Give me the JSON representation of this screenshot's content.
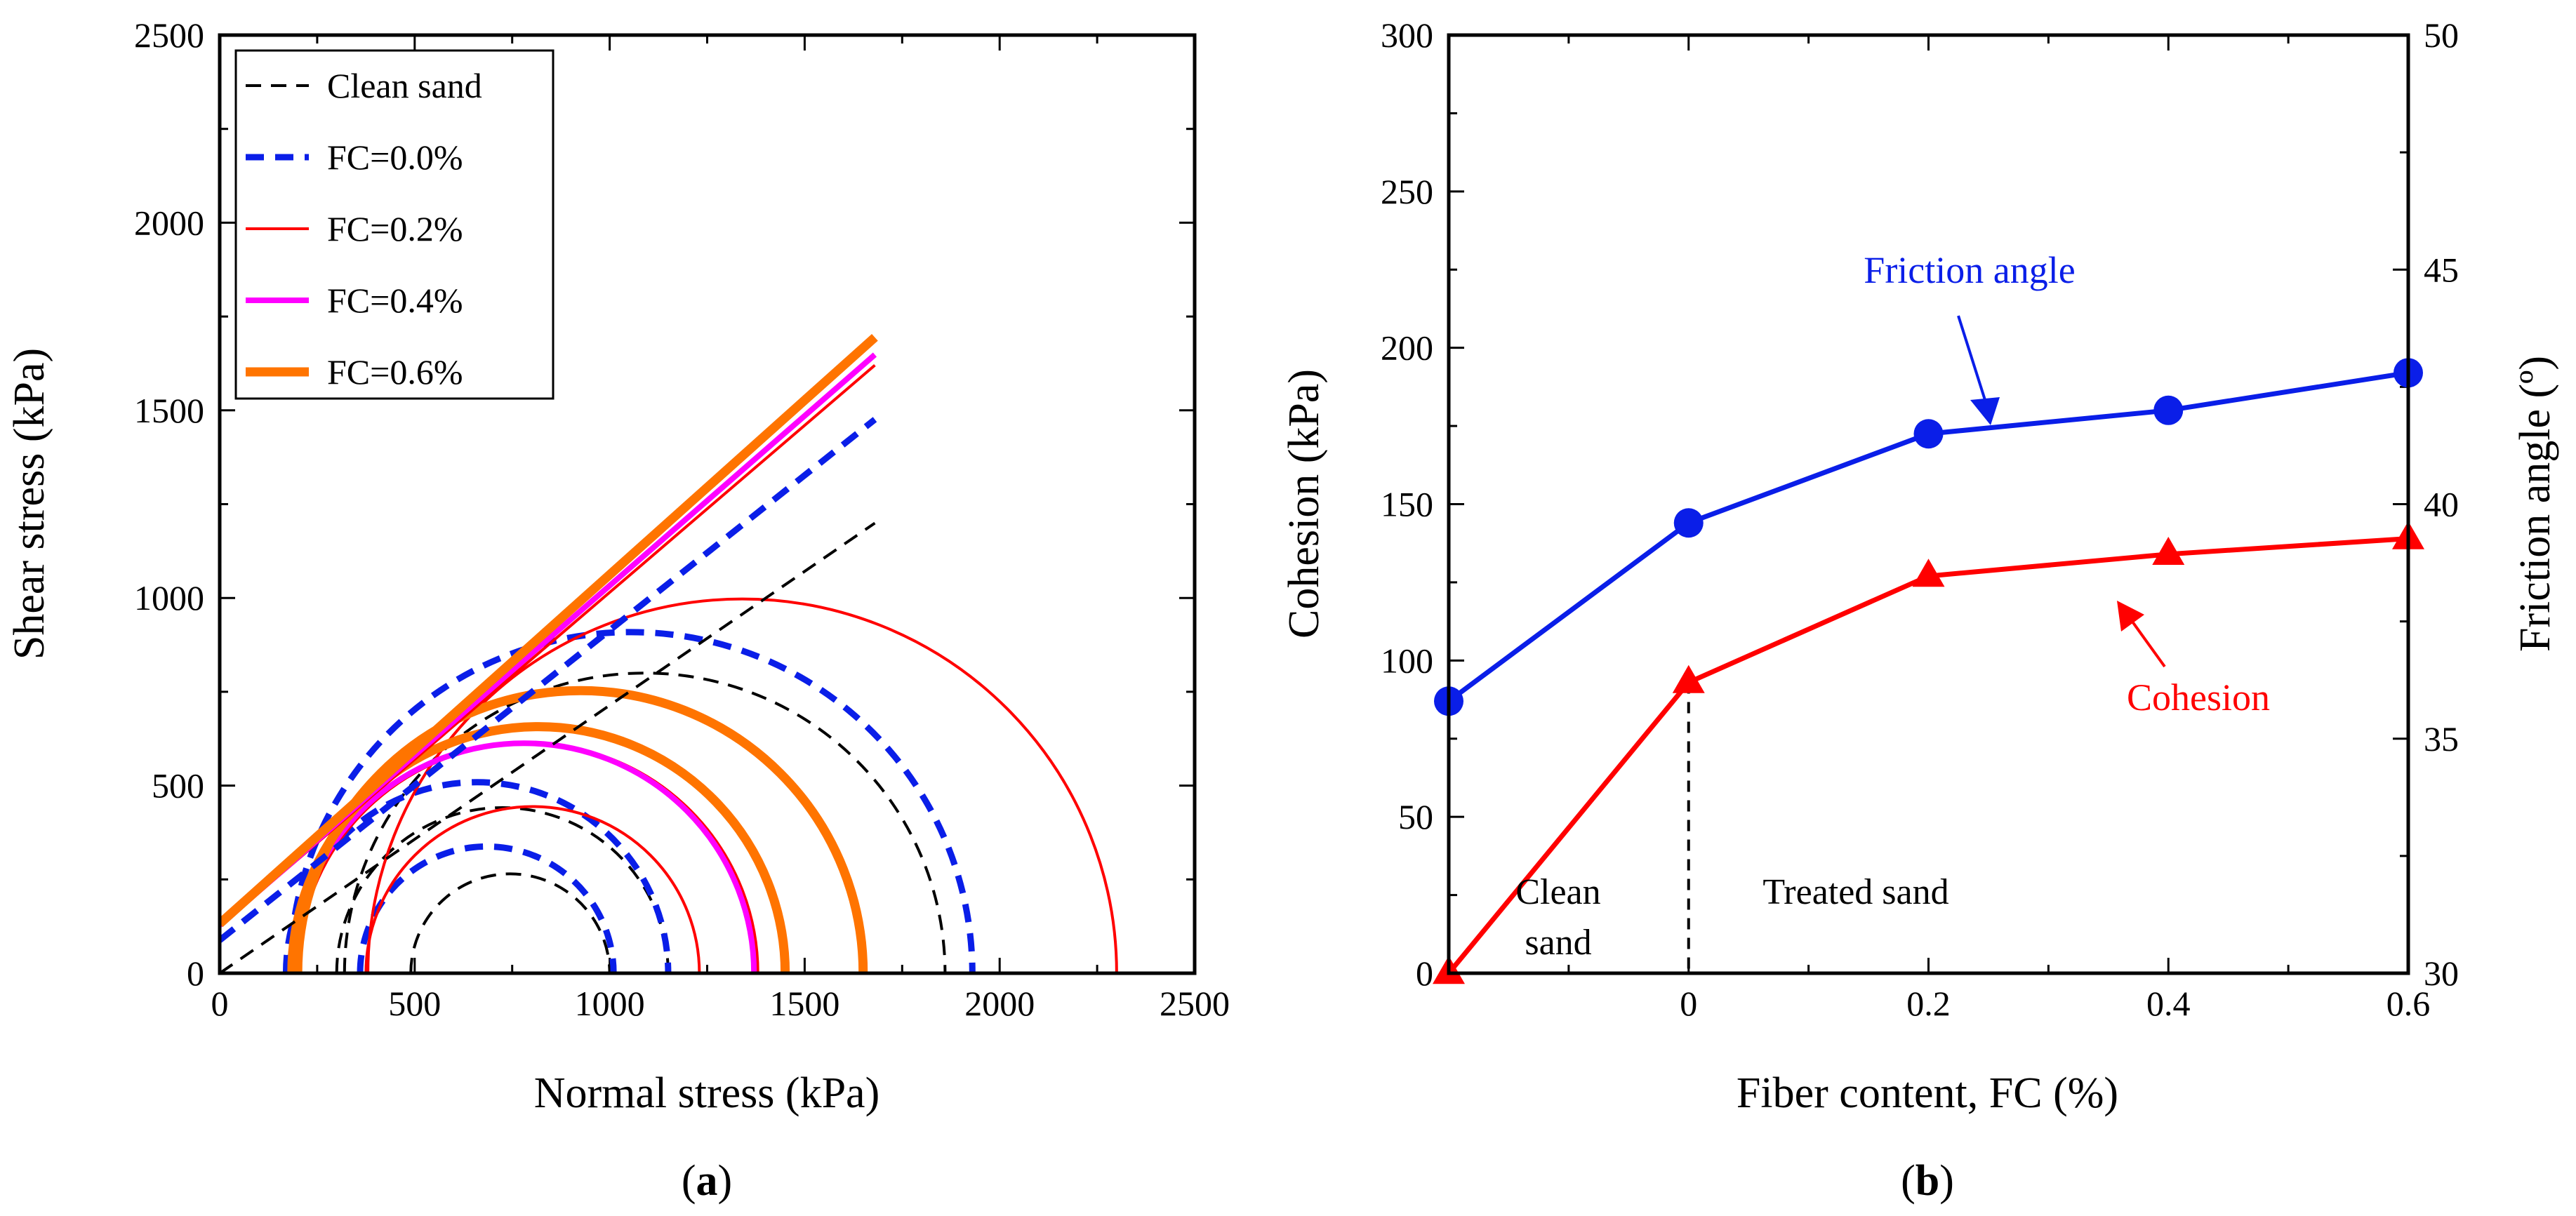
{
  "chart_data": [
    {
      "type": "mohr-coulomb",
      "panel_label": "(a)",
      "panel_letter": "a",
      "xlabel": "Normal stress (kPa)",
      "ylabel": "Shear stress (kPa)",
      "xlim": [
        0,
        2500
      ],
      "ylim": [
        0,
        2500
      ],
      "xticks": [
        "0",
        "500",
        "1000",
        "1500",
        "2000",
        "2500"
      ],
      "yticks": [
        "0",
        "500",
        "1000",
        "1500",
        "2000",
        "2500"
      ],
      "legend_position": "top-left",
      "series": [
        {
          "name": "Clean sand",
          "color": "#000000",
          "line": "thin-dashed",
          "envelope": {
            "intercept": 0,
            "slope": 0.714,
            "x_end": 1680
          },
          "circles": [
            [
              490,
              1000
            ],
            [
              300,
              1150
            ],
            [
              320,
              1860
            ]
          ]
        },
        {
          "name": "FC=0.0%",
          "color": "#0a1ee8",
          "line": "thick-dashed",
          "envelope": {
            "intercept": 88,
            "slope": 0.826,
            "x_end": 1680
          },
          "circles": [
            [
              360,
              1010
            ],
            [
              170,
              1150
            ],
            [
              180,
              1930
            ]
          ]
        },
        {
          "name": "FC=0.2%",
          "color": "#ff0000",
          "line": "thin-solid",
          "envelope": {
            "intercept": 125,
            "slope": 0.89,
            "x_end": 1680
          },
          "circles": [
            [
              375,
              1230
            ],
            [
              200,
              1380
            ],
            [
              380,
              2300
            ]
          ]
        },
        {
          "name": "FC=0.4%",
          "color": "#ff00ff",
          "line": "medium-solid",
          "envelope": {
            "intercept": 128,
            "slope": 0.905,
            "x_end": 1680
          },
          "circles": [
            [
              190,
              1370
            ]
          ]
        },
        {
          "name": "FC=0.6%",
          "color": "#ff7400",
          "line": "thick-solid",
          "envelope": {
            "intercept": 132,
            "slope": 0.93,
            "x_end": 1680
          },
          "circles": [
            [
              185,
              1450
            ],
            [
              200,
              1650
            ]
          ]
        }
      ]
    },
    {
      "type": "line",
      "panel_label": "(b)",
      "panel_letter": "b",
      "xlabel": "Fiber content, FC (%)",
      "ylabel_left": "Cohesion (kPa)",
      "ylabel_right": "Friction angle (º)",
      "xlim": [
        -0.2,
        0.6
      ],
      "xticks": [
        "0",
        "0.2",
        "0.4",
        "0.6"
      ],
      "ylim_left": [
        0,
        300
      ],
      "yticks_left": [
        "0",
        "50",
        "100",
        "150",
        "200",
        "250",
        "300"
      ],
      "ylim_right": [
        30,
        50
      ],
      "yticks_right": [
        "30",
        "35",
        "40",
        "45",
        "50"
      ],
      "x": [
        -0.2,
        0.0,
        0.2,
        0.4,
        0.6
      ],
      "series": [
        {
          "name": "Friction angle",
          "axis": "right",
          "marker": "circle",
          "color": "#0a1ee8",
          "values": [
            35.8,
            39.6,
            41.5,
            42.0,
            42.8
          ]
        },
        {
          "name": "Cohesion",
          "axis": "left",
          "marker": "triangle",
          "color": "#ff0000",
          "values": [
            0,
            93,
            127,
            134,
            139
          ]
        }
      ],
      "annotations": {
        "friction": "Friction angle",
        "cohesion": "Cohesion",
        "clean_line1": "Clean",
        "clean_line2": "sand",
        "treated": "Treated sand"
      }
    }
  ]
}
